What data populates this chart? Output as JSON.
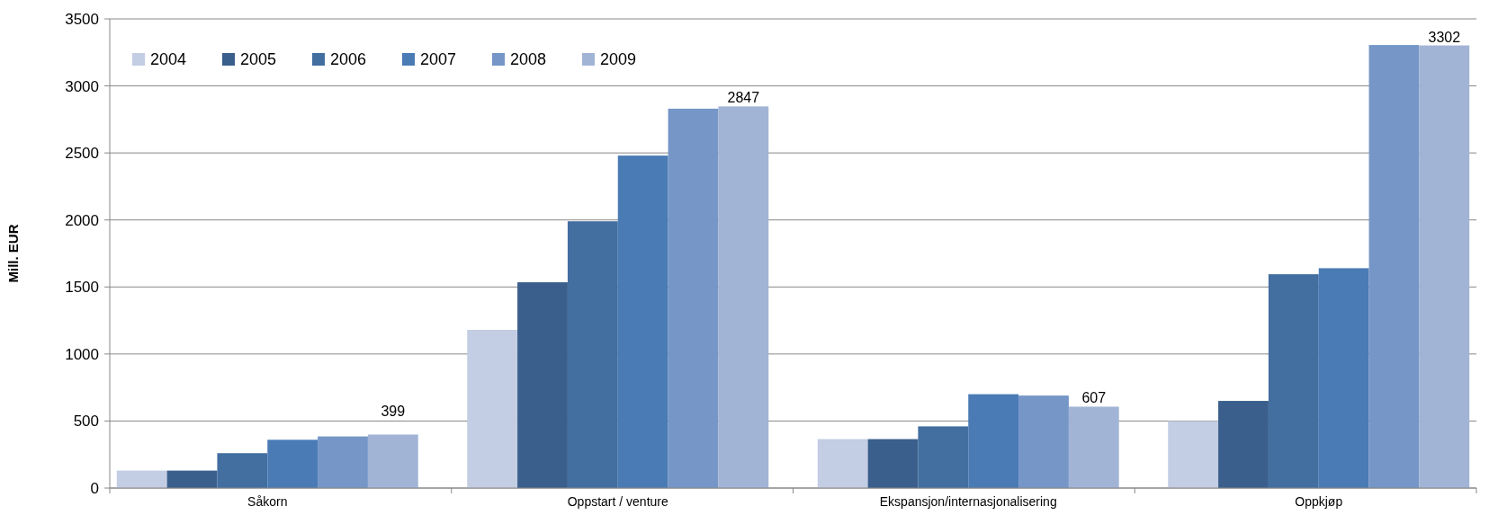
{
  "chart_data": {
    "type": "bar",
    "ylabel": "Mill. EUR",
    "categories": [
      "Såkorn",
      "Oppstart / venture",
      "Ekspansjon/internasjonalisering",
      "Oppkjøp"
    ],
    "series": [
      {
        "name": "2004",
        "color": "#c3cde3",
        "values": [
          130,
          1180,
          365,
          500
        ]
      },
      {
        "name": "2005",
        "color": "#3a5f8c",
        "values": [
          130,
          1535,
          365,
          650
        ]
      },
      {
        "name": "2006",
        "color": "#426ea0",
        "values": [
          260,
          1990,
          460,
          1595
        ]
      },
      {
        "name": "2007",
        "color": "#4a7bb5",
        "values": [
          360,
          2480,
          700,
          1640
        ]
      },
      {
        "name": "2008",
        "color": "#7596c7",
        "values": [
          385,
          2830,
          690,
          3305
        ]
      },
      {
        "name": "2009",
        "color": "#a2b4d6",
        "values": [
          399,
          2847,
          607,
          3302
        ],
        "value_labels": [
          "399",
          "2847",
          "607",
          "3302"
        ]
      }
    ],
    "ylim": [
      0,
      3500
    ],
    "yticks": [
      0,
      500,
      1000,
      1500,
      2000,
      2500,
      3000,
      3500
    ],
    "grid": "y",
    "legend": "top left"
  }
}
